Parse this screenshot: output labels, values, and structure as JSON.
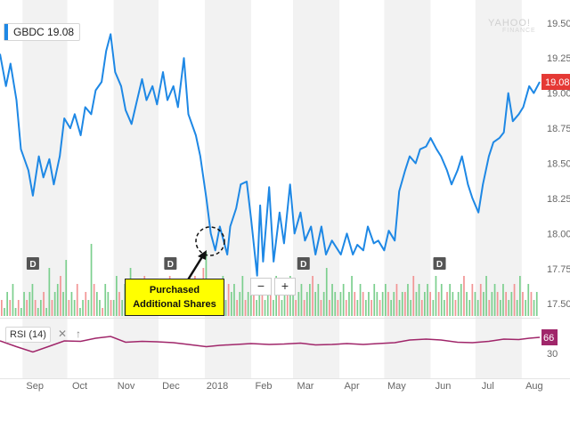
{
  "header": {
    "ticker": "GBDC",
    "last_price": "19.08",
    "watermark_top": "YAHOO!",
    "watermark_bottom": "FINANCE"
  },
  "price_tag": "19.08",
  "rsi": {
    "label": "RSI (14)",
    "value_tag": "66",
    "axis_label": "30",
    "close_symbol": "✕",
    "expand_symbol": "↑"
  },
  "zoom": {
    "minus": "−",
    "plus": "+"
  },
  "callout": {
    "line1": "Purchased",
    "line2": "Additional Shares"
  },
  "colors": {
    "price_line": "#1e88e5",
    "rsi_line": "#a0266a",
    "price_tag_bg": "#e53935",
    "rsi_tag_bg": "#a0266a",
    "volume_up": "#7ccf8e",
    "volume_down": "#f29595",
    "band": "#f2f2f2",
    "callout_bg": "#ffff00"
  },
  "chart_data": {
    "type": "line",
    "title": "",
    "xlabel": "",
    "ylabel": "",
    "x_tick_labels": [
      "Sep",
      "Oct",
      "Nov",
      "Dec",
      "2018",
      "Feb",
      "Mar",
      "Apr",
      "May",
      "Jun",
      "Jul",
      "Aug"
    ],
    "y_tick_labels": [
      "19.50",
      "19.25",
      "19.00",
      "18.75",
      "18.50",
      "18.25",
      "18.00",
      "17.75",
      "17.50"
    ],
    "ylim": [
      17.4,
      19.6
    ],
    "grid": "alternating vertical month bands",
    "series": [
      {
        "name": "GBDC",
        "points": [
          [
            "2017-08-17",
            19.28
          ],
          [
            "2017-08-21",
            19.05
          ],
          [
            "2017-08-24",
            19.21
          ],
          [
            "2017-08-28",
            18.95
          ],
          [
            "2017-08-31",
            18.6
          ],
          [
            "2017-09-05",
            18.45
          ],
          [
            "2017-09-08",
            18.27
          ],
          [
            "2017-09-12",
            18.55
          ],
          [
            "2017-09-15",
            18.4
          ],
          [
            "2017-09-19",
            18.53
          ],
          [
            "2017-09-22",
            18.35
          ],
          [
            "2017-09-26",
            18.55
          ],
          [
            "2017-09-29",
            18.82
          ],
          [
            "2017-10-03",
            18.75
          ],
          [
            "2017-10-06",
            18.85
          ],
          [
            "2017-10-10",
            18.7
          ],
          [
            "2017-10-13",
            18.9
          ],
          [
            "2017-10-17",
            18.85
          ],
          [
            "2017-10-20",
            19.02
          ],
          [
            "2017-10-24",
            19.08
          ],
          [
            "2017-10-27",
            19.3
          ],
          [
            "2017-10-30",
            19.42
          ],
          [
            "2017-11-02",
            19.15
          ],
          [
            "2017-11-06",
            19.05
          ],
          [
            "2017-11-09",
            18.88
          ],
          [
            "2017-11-13",
            18.78
          ],
          [
            "2017-11-16",
            18.92
          ],
          [
            "2017-11-20",
            19.1
          ],
          [
            "2017-11-23",
            18.95
          ],
          [
            "2017-11-27",
            19.05
          ],
          [
            "2017-11-30",
            18.92
          ],
          [
            "2017-12-04",
            19.15
          ],
          [
            "2017-12-07",
            18.95
          ],
          [
            "2017-12-11",
            19.05
          ],
          [
            "2017-12-14",
            18.9
          ],
          [
            "2017-12-18",
            19.25
          ],
          [
            "2017-12-21",
            18.85
          ],
          [
            "2017-12-26",
            18.7
          ],
          [
            "2017-12-29",
            18.55
          ],
          [
            "2018-01-02",
            18.25
          ],
          [
            "2018-01-05",
            18.0
          ],
          [
            "2018-01-08",
            17.88
          ],
          [
            "2018-01-11",
            18.05
          ],
          [
            "2018-01-16",
            17.85
          ],
          [
            "2018-01-18",
            18.05
          ],
          [
            "2018-01-22",
            18.18
          ],
          [
            "2018-01-25",
            18.35
          ],
          [
            "2018-01-29",
            18.37
          ],
          [
            "2018-02-01",
            18.1
          ],
          [
            "2018-02-05",
            17.7
          ],
          [
            "2018-02-07",
            18.2
          ],
          [
            "2018-02-09",
            17.8
          ],
          [
            "2018-02-13",
            18.33
          ],
          [
            "2018-02-16",
            17.8
          ],
          [
            "2018-02-20",
            18.15
          ],
          [
            "2018-02-23",
            17.93
          ],
          [
            "2018-02-27",
            18.35
          ],
          [
            "2018-03-02",
            18.0
          ],
          [
            "2018-03-06",
            18.15
          ],
          [
            "2018-03-09",
            17.95
          ],
          [
            "2018-03-13",
            18.05
          ],
          [
            "2018-03-16",
            17.85
          ],
          [
            "2018-03-20",
            18.05
          ],
          [
            "2018-03-23",
            17.85
          ],
          [
            "2018-03-27",
            17.95
          ],
          [
            "2018-04-02",
            17.85
          ],
          [
            "2018-04-06",
            18.0
          ],
          [
            "2018-04-10",
            17.85
          ],
          [
            "2018-04-13",
            17.92
          ],
          [
            "2018-04-17",
            17.88
          ],
          [
            "2018-04-20",
            18.05
          ],
          [
            "2018-04-24",
            17.93
          ],
          [
            "2018-04-27",
            17.95
          ],
          [
            "2018-05-01",
            17.88
          ],
          [
            "2018-05-04",
            18.02
          ],
          [
            "2018-05-08",
            17.95
          ],
          [
            "2018-05-11",
            18.3
          ],
          [
            "2018-05-15",
            18.45
          ],
          [
            "2018-05-18",
            18.55
          ],
          [
            "2018-05-22",
            18.5
          ],
          [
            "2018-05-25",
            18.6
          ],
          [
            "2018-05-29",
            18.62
          ],
          [
            "2018-06-01",
            18.68
          ],
          [
            "2018-06-05",
            18.6
          ],
          [
            "2018-06-08",
            18.55
          ],
          [
            "2018-06-12",
            18.45
          ],
          [
            "2018-06-15",
            18.35
          ],
          [
            "2018-06-19",
            18.45
          ],
          [
            "2018-06-22",
            18.55
          ],
          [
            "2018-06-26",
            18.35
          ],
          [
            "2018-06-29",
            18.25
          ],
          [
            "2018-07-03",
            18.15
          ],
          [
            "2018-07-06",
            18.35
          ],
          [
            "2018-07-10",
            18.55
          ],
          [
            "2018-07-13",
            18.65
          ],
          [
            "2018-07-17",
            18.68
          ],
          [
            "2018-07-20",
            18.72
          ],
          [
            "2018-07-23",
            19.0
          ],
          [
            "2018-07-26",
            18.8
          ],
          [
            "2018-07-30",
            18.85
          ],
          [
            "2018-08-02",
            18.9
          ],
          [
            "2018-08-06",
            19.05
          ],
          [
            "2018-08-09",
            19.0
          ],
          [
            "2018-08-13",
            19.08
          ]
        ]
      },
      {
        "name": "RSI (14)",
        "points": [
          [
            "2017-08-17",
            58
          ],
          [
            "2017-08-28",
            45
          ],
          [
            "2017-09-08",
            33
          ],
          [
            "2017-09-19",
            46
          ],
          [
            "2017-09-29",
            58
          ],
          [
            "2017-10-10",
            57
          ],
          [
            "2017-10-20",
            64
          ],
          [
            "2017-10-30",
            68
          ],
          [
            "2017-11-09",
            55
          ],
          [
            "2017-11-20",
            57
          ],
          [
            "2017-11-30",
            56
          ],
          [
            "2017-12-11",
            54
          ],
          [
            "2017-12-21",
            50
          ],
          [
            "2018-01-02",
            45
          ],
          [
            "2018-01-11",
            48
          ],
          [
            "2018-01-22",
            50
          ],
          [
            "2018-02-01",
            52
          ],
          [
            "2018-02-13",
            50
          ],
          [
            "2018-02-23",
            51
          ],
          [
            "2018-03-06",
            53
          ],
          [
            "2018-03-16",
            49
          ],
          [
            "2018-03-27",
            50
          ],
          [
            "2018-04-06",
            52
          ],
          [
            "2018-04-17",
            50
          ],
          [
            "2018-04-27",
            52
          ],
          [
            "2018-05-08",
            54
          ],
          [
            "2018-05-18",
            60
          ],
          [
            "2018-05-29",
            62
          ],
          [
            "2018-06-08",
            60
          ],
          [
            "2018-06-19",
            55
          ],
          [
            "2018-06-29",
            54
          ],
          [
            "2018-07-10",
            57
          ],
          [
            "2018-07-20",
            62
          ],
          [
            "2018-07-30",
            61
          ],
          [
            "2018-08-06",
            64
          ],
          [
            "2018-08-13",
            66
          ]
        ]
      }
    ],
    "volume": [
      2,
      1,
      3,
      2,
      4,
      1,
      2,
      1,
      3,
      2,
      3,
      4,
      2,
      1,
      2,
      3,
      1,
      6,
      2,
      3,
      4,
      5,
      3,
      7,
      2,
      3,
      2,
      4,
      1,
      2,
      3,
      2,
      9,
      4,
      3,
      2,
      1,
      4,
      3,
      2,
      2,
      5,
      3,
      2,
      4,
      3,
      6,
      2,
      3,
      1,
      4,
      5,
      2,
      3,
      4,
      2,
      3,
      2,
      4,
      3,
      5,
      2,
      3,
      4,
      2,
      3,
      3,
      4,
      2,
      5,
      3,
      4,
      6,
      8,
      3,
      2,
      3,
      4,
      2,
      5,
      2,
      4,
      3,
      4,
      2,
      3,
      5,
      2,
      3,
      4,
      3,
      2,
      4,
      3,
      2,
      3,
      4,
      2,
      5,
      3,
      2,
      4,
      3,
      5,
      3,
      2,
      3,
      4,
      2,
      3,
      4,
      5,
      3,
      4,
      2,
      3,
      6,
      2,
      4,
      3,
      2,
      3,
      4,
      2,
      3,
      5,
      3,
      2,
      4,
      3,
      2,
      3,
      2,
      4,
      3,
      2,
      3,
      4,
      3,
      2,
      3,
      4,
      2,
      3,
      3,
      4,
      2,
      5,
      3,
      4,
      2,
      3,
      4,
      3,
      2,
      5,
      3,
      4,
      2,
      3,
      4,
      3,
      2,
      3,
      4,
      5,
      3,
      2,
      4,
      3,
      2,
      4,
      3,
      5,
      2,
      3,
      4,
      3,
      2,
      4,
      3,
      2,
      3,
      4,
      2,
      5,
      3,
      2,
      4,
      3,
      2,
      3
    ],
    "dividend_markers": [
      "D",
      "D",
      "D",
      "D"
    ]
  }
}
